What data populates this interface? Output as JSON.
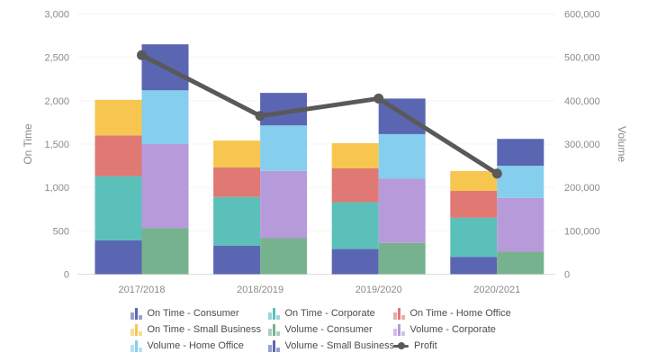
{
  "chart_data": {
    "type": "bar",
    "subtype": "stacked-bars-with-line",
    "categories": [
      "2017/2018",
      "2018/2019",
      "2019/2020",
      "2020/2021"
    ],
    "left_axis": {
      "title": "On Time",
      "min": 0,
      "max": 3000,
      "tick_step": 500,
      "ticks": [
        "0",
        "500",
        "1,000",
        "1,500",
        "2,000",
        "2,500",
        "3,000"
      ]
    },
    "right_axis": {
      "title": "Volume",
      "min": 0,
      "max": 600000,
      "tick_step": 100000,
      "ticks": [
        "0",
        "100,000",
        "200,000",
        "300,000",
        "400,000",
        "500,000",
        "600,000"
      ]
    },
    "bar_series": [
      {
        "name": "On Time - Consumer",
        "axis": "left",
        "stack": "on_time",
        "color": "#5A66B2",
        "values": [
          390,
          330,
          290,
          200
        ]
      },
      {
        "name": "On Time - Corporate",
        "axis": "left",
        "stack": "on_time",
        "color": "#5BC0BA",
        "values": [
          740,
          560,
          540,
          450
        ]
      },
      {
        "name": "On Time - Home Office",
        "axis": "left",
        "stack": "on_time",
        "color": "#E07873",
        "values": [
          470,
          340,
          390,
          310
        ]
      },
      {
        "name": "On Time - Small Business",
        "axis": "left",
        "stack": "on_time",
        "color": "#F6C64F",
        "values": [
          410,
          310,
          290,
          230
        ]
      },
      {
        "name": "Volume - Consumer",
        "axis": "right",
        "stack": "volume",
        "color": "#77B28F",
        "values": [
          106000,
          83000,
          72000,
          52000
        ]
      },
      {
        "name": "Volume - Corporate",
        "axis": "right",
        "stack": "volume",
        "color": "#B79AD9",
        "values": [
          194000,
          155000,
          148000,
          124000
        ]
      },
      {
        "name": "Volume - Home Office",
        "axis": "right",
        "stack": "volume",
        "color": "#86CEEE",
        "values": [
          124000,
          105000,
          103000,
          74000
        ]
      },
      {
        "name": "Volume - Small Business",
        "axis": "right",
        "stack": "volume",
        "color": "#5A66B2",
        "values": [
          106000,
          75000,
          82000,
          62000
        ]
      }
    ],
    "line_series": [
      {
        "name": "Profit",
        "axis": "right",
        "color": "#595959",
        "values": [
          505000,
          365000,
          405000,
          232000
        ]
      }
    ],
    "legend": [
      "On Time - Consumer",
      "On Time - Corporate",
      "On Time - Home Office",
      "On Time - Small Business",
      "Volume - Consumer",
      "Volume - Corporate",
      "Volume - Home Office",
      "Volume - Small Business",
      "Profit"
    ],
    "legend_position": "bottom",
    "grid": true,
    "styles": {
      "gridline_color": "#f4f4f4",
      "baseline_color": "#dedede",
      "tick_text_color": "#8a8a8a",
      "legend_text_color": "#4d4d4d",
      "profit_line_color": "#595959"
    }
  }
}
